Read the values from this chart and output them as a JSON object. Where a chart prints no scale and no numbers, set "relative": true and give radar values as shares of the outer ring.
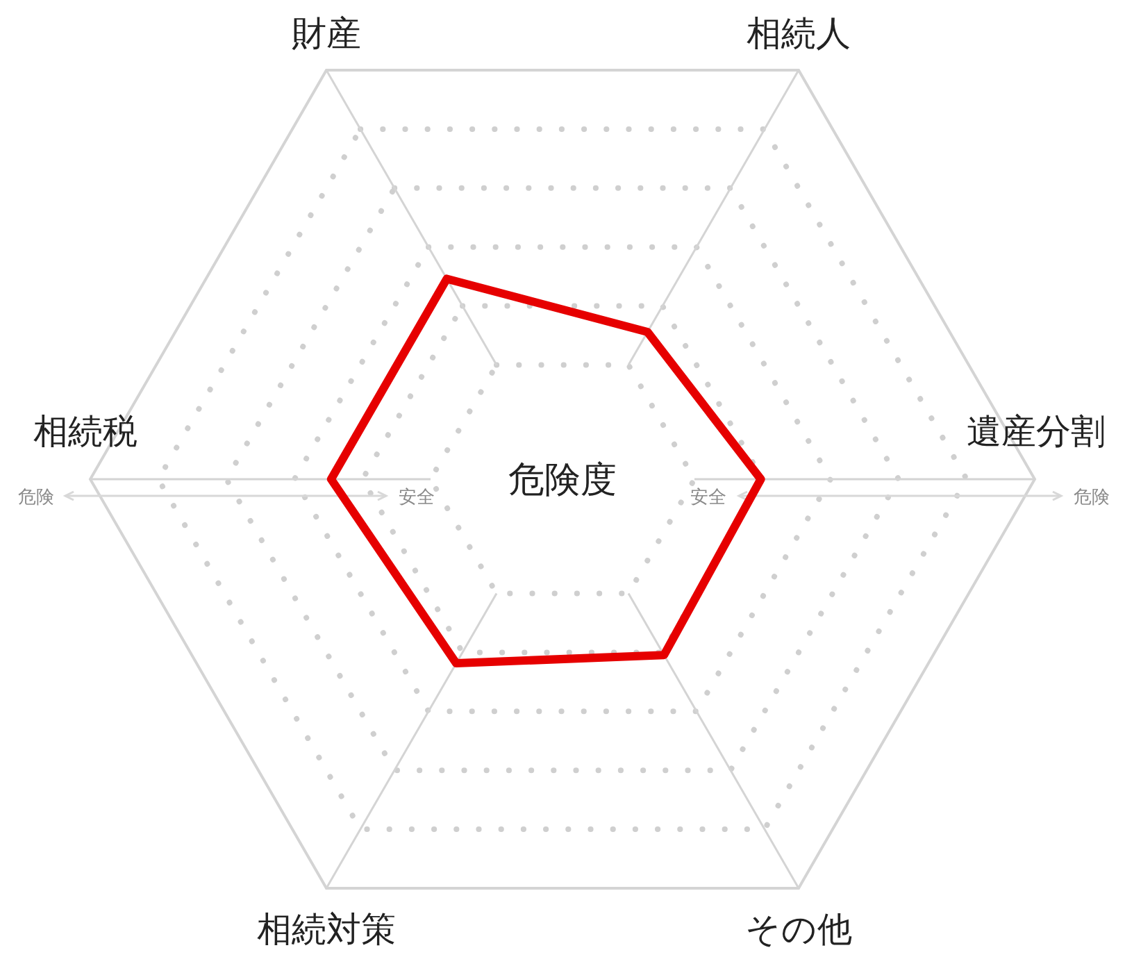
{
  "chart_data": {
    "type": "radar",
    "title": "危険度",
    "relative": true,
    "grid": true,
    "marker": "none",
    "line_style": "solid",
    "categories": [
      "財産",
      "相続人",
      "遺産分割",
      "その他",
      "相続対策",
      "相続税"
    ],
    "series": [
      {
        "color": "#e60000",
        "values": [
          0.49,
          0.36,
          0.42,
          0.43,
          0.45,
          0.49
        ]
      }
    ],
    "annotations": [
      "危険",
      "安全",
      "安全",
      "危険"
    ]
  }
}
